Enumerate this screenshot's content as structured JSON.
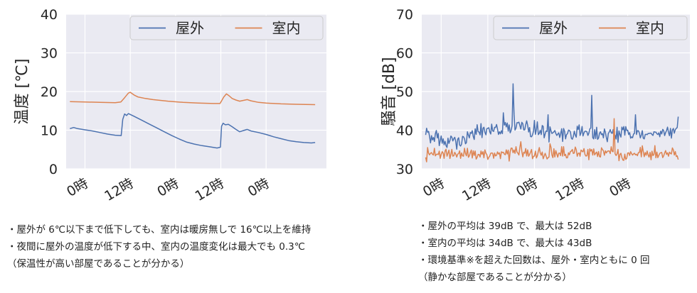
{
  "chart_data": [
    {
      "type": "line",
      "ylabel": "温度 [℃]",
      "ylim": [
        0,
        40
      ],
      "yticks": [
        "0",
        "10",
        "20",
        "30",
        "40"
      ],
      "xtick_labels": [
        "0時",
        "12時",
        "0時",
        "12時",
        "0時"
      ],
      "grid": true,
      "legend_position": "top-right",
      "x_unit": "hours",
      "xlim": [
        -5,
        64
      ],
      "xticks": [
        0,
        12,
        24,
        36,
        48
      ],
      "series": [
        {
          "name": "屋外",
          "color": "#4c72b0",
          "points": [
            [
              -4,
              10.4
            ],
            [
              -3,
              10.7
            ],
            [
              -2,
              10.4
            ],
            [
              0,
              10.1
            ],
            [
              2,
              9.8
            ],
            [
              4,
              9.4
            ],
            [
              6,
              9.0
            ],
            [
              8,
              8.7
            ],
            [
              9.6,
              8.6
            ],
            [
              10,
              12.8
            ],
            [
              10.5,
              14.2
            ],
            [
              11,
              13.8
            ],
            [
              11.5,
              14.3
            ],
            [
              13,
              13.6
            ],
            [
              15,
              12.6
            ],
            [
              17,
              11.6
            ],
            [
              19,
              10.6
            ],
            [
              21,
              9.6
            ],
            [
              23,
              8.6
            ],
            [
              25,
              7.7
            ],
            [
              27,
              6.9
            ],
            [
              29,
              6.4
            ],
            [
              31,
              6.0
            ],
            [
              33,
              5.7
            ],
            [
              35,
              5.4
            ],
            [
              35.9,
              5.6
            ],
            [
              36.2,
              11.0
            ],
            [
              36.6,
              11.8
            ],
            [
              37.2,
              11.4
            ],
            [
              38,
              11.5
            ],
            [
              39,
              10.9
            ],
            [
              40,
              10.2
            ],
            [
              41,
              9.6
            ],
            [
              42,
              9.9
            ],
            [
              43,
              10.2
            ],
            [
              44,
              9.8
            ],
            [
              46,
              9.4
            ],
            [
              48,
              8.9
            ],
            [
              50,
              8.3
            ],
            [
              52,
              7.8
            ],
            [
              54,
              7.3
            ],
            [
              56,
              7.0
            ],
            [
              58,
              6.8
            ],
            [
              60,
              6.7
            ],
            [
              61,
              6.8
            ]
          ]
        },
        {
          "name": "室内",
          "color": "#dd8452",
          "points": [
            [
              -4,
              17.4
            ],
            [
              0,
              17.3
            ],
            [
              4,
              17.2
            ],
            [
              8,
              17.1
            ],
            [
              9.5,
              17.3
            ],
            [
              10.5,
              18.4
            ],
            [
              11.5,
              19.6
            ],
            [
              12,
              19.8
            ],
            [
              13,
              19.1
            ],
            [
              14,
              18.6
            ],
            [
              16,
              18.2
            ],
            [
              18,
              17.9
            ],
            [
              22,
              17.5
            ],
            [
              26,
              17.2
            ],
            [
              30,
              17.0
            ],
            [
              34,
              16.9
            ],
            [
              35.8,
              16.9
            ],
            [
              36.8,
              18.6
            ],
            [
              37.5,
              19.4
            ],
            [
              38.2,
              18.9
            ],
            [
              39,
              18.2
            ],
            [
              40,
              17.8
            ],
            [
              41,
              17.5
            ],
            [
              42,
              17.7
            ],
            [
              43,
              17.9
            ],
            [
              44,
              17.6
            ],
            [
              46,
              17.2
            ],
            [
              48,
              17.0
            ],
            [
              52,
              16.8
            ],
            [
              56,
              16.7
            ],
            [
              61,
              16.6
            ]
          ]
        }
      ]
    },
    {
      "type": "line",
      "ylabel": "騒音 [dB]",
      "ylim": [
        30,
        70
      ],
      "yticks": [
        "30",
        "40",
        "50",
        "60",
        "70"
      ],
      "xtick_labels": [
        "0時",
        "12時",
        "0時",
        "12時",
        "0時"
      ],
      "grid": true,
      "legend_position": "top-right",
      "x_unit": "hours",
      "xlim": [
        -5,
        64
      ],
      "xticks": [
        0,
        12,
        24,
        36,
        48
      ],
      "series": [
        {
          "name": "屋外",
          "color": "#4c72b0",
          "baseline": [
            [
              -4,
              38.5
            ],
            [
              2,
              37.0
            ],
            [
              6,
              37.5
            ],
            [
              10,
              40.0
            ],
            [
              14,
              40.5
            ],
            [
              20,
              41.0
            ],
            [
              25,
              40.0
            ],
            [
              30,
              39.0
            ],
            [
              35,
              39.0
            ],
            [
              40,
              39.5
            ],
            [
              45,
              39.0
            ],
            [
              50,
              39.0
            ],
            [
              55,
              38.5
            ],
            [
              61,
              40.0
            ]
          ],
          "noise": 1.5,
          "x_step": 0.25,
          "spikes": [
            [
              -3.8,
              40.5
            ],
            [
              16,
              44.5
            ],
            [
              18.4,
              52.0
            ],
            [
              18.7,
              44.0
            ],
            [
              27.5,
              44.0
            ],
            [
              38.8,
              49.0
            ],
            [
              50,
              44.0
            ],
            [
              61,
              43.5
            ]
          ]
        },
        {
          "name": "室内",
          "color": "#dd8452",
          "baseline": [
            [
              -4,
              34.0
            ],
            [
              10,
              33.8
            ],
            [
              20,
              34.0
            ],
            [
              30,
              34.0
            ],
            [
              40,
              34.2
            ],
            [
              50,
              34.0
            ],
            [
              61,
              33.5
            ]
          ],
          "noise": 1.2,
          "x_step": 0.25,
          "spikes": [
            [
              -3.5,
              35.5
            ],
            [
              20.5,
              37.0
            ],
            [
              28,
              36.5
            ],
            [
              44.5,
              43.0
            ],
            [
              55,
              36.0
            ]
          ]
        }
      ]
    }
  ],
  "notes_left": [
    "・屋外が 6℃以下まで低下しても、室内は暖房無しで 16℃以上を維持",
    "・夜間に屋外の温度が低下する中、室内の温度変化は最大でも 0.3℃",
    "（保温性が高い部屋であることが分かる）"
  ],
  "notes_right": [
    "・屋外の平均は 39dB で、最大は 52dB",
    "・室内の平均は 34dB で、最大は 43dB",
    "・環境基準※を超えた回数は、屋外・室内ともに 0 回",
    "（静かな部屋であることが分かる）"
  ]
}
